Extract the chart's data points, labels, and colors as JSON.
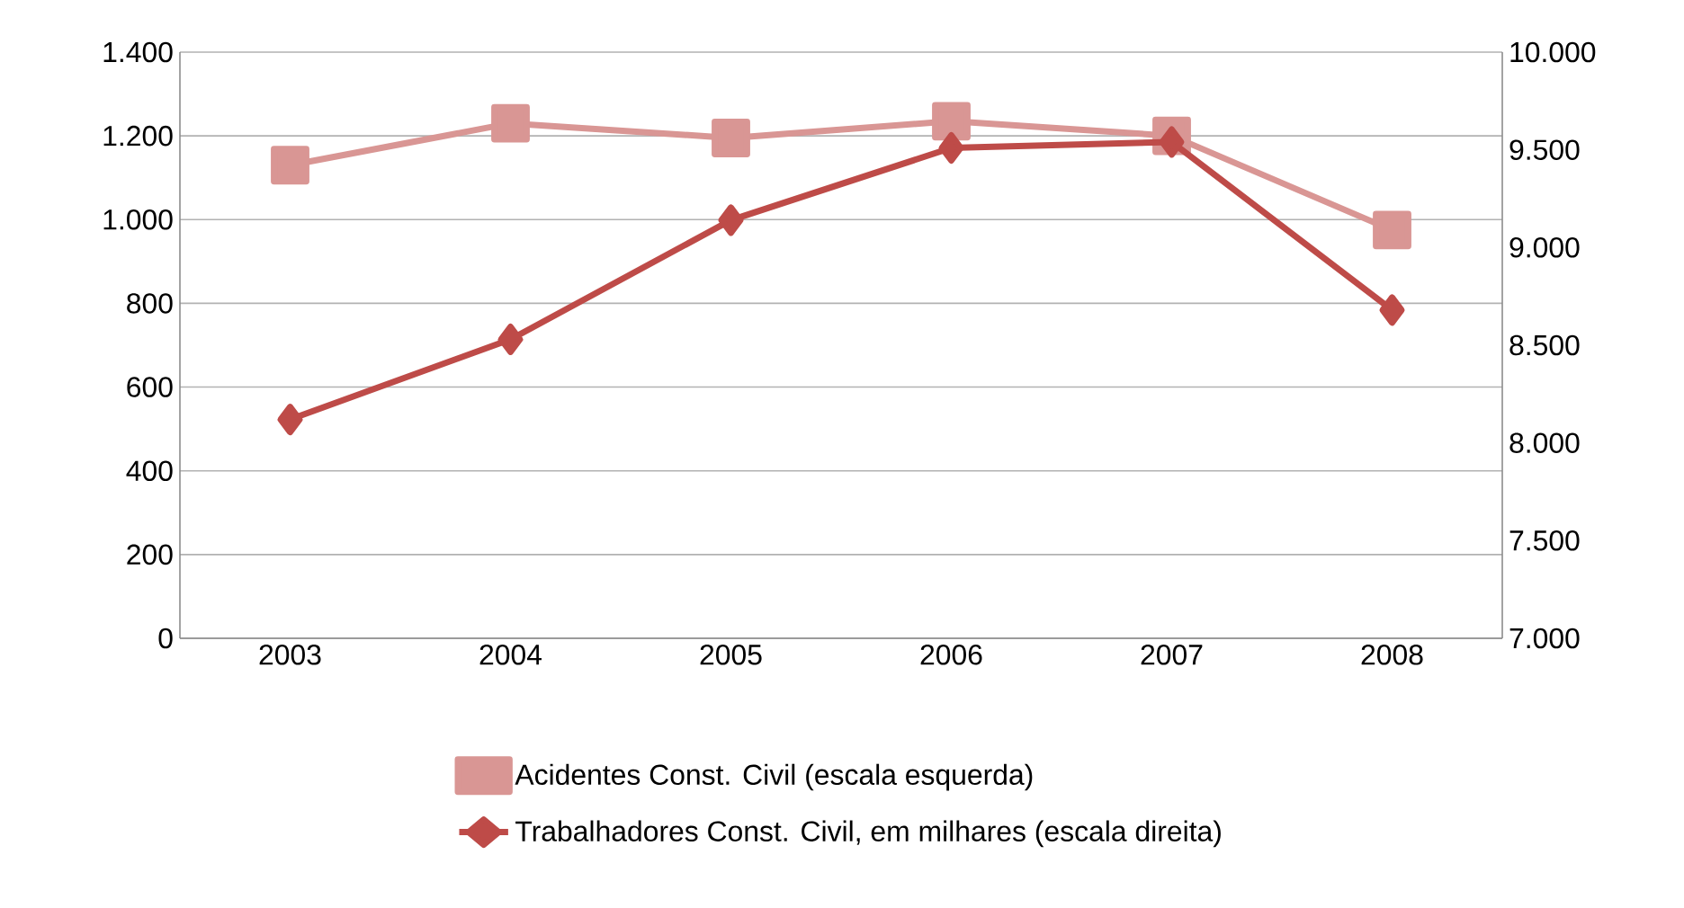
{
  "chart_data": {
    "type": "line",
    "categories": [
      "2003",
      "2004",
      "2005",
      "2006",
      "2007",
      "2008"
    ],
    "series": [
      {
        "name": "Acidentes Const. Civil (escala esquerda)",
        "color": "#d99694",
        "marker": "square",
        "line_style": "solid",
        "values": [
          1130,
          1230,
          1195,
          1235,
          1200,
          975
        ]
      },
      {
        "name": "Trabalhadores Const. Civil, em milhares (escala direita)",
        "color": "#be4b48",
        "marker": "diamond",
        "line_style": "solid",
        "axis": "y2",
        "values": [
          8120,
          8530,
          9140,
          9510,
          9540,
          8680
        ]
      }
    ],
    "ylim": [
      0,
      1400
    ],
    "yticks": [
      {
        "value": 0,
        "label": "0"
      },
      {
        "value": 200,
        "label": "200"
      },
      {
        "value": 400,
        "label": "400"
      },
      {
        "value": 600,
        "label": "600"
      },
      {
        "value": 800,
        "label": "800"
      },
      {
        "value": 1000,
        "label": "1.000"
      },
      {
        "value": 1200,
        "label": "1.200"
      },
      {
        "value": 1400,
        "label": "1.400"
      }
    ],
    "y2lim": [
      7000,
      10000
    ],
    "y2ticks": [
      {
        "value": 7000,
        "label": "7.000"
      },
      {
        "value": 7500,
        "label": "7.500"
      },
      {
        "value": 8000,
        "label": "8.000"
      },
      {
        "value": 8500,
        "label": "8.500"
      },
      {
        "value": 9000,
        "label": "9.000"
      },
      {
        "value": 9500,
        "label": "9.500"
      },
      {
        "value": 10000,
        "label": "10.000"
      }
    ],
    "grid": "y",
    "legend": "bottom"
  }
}
